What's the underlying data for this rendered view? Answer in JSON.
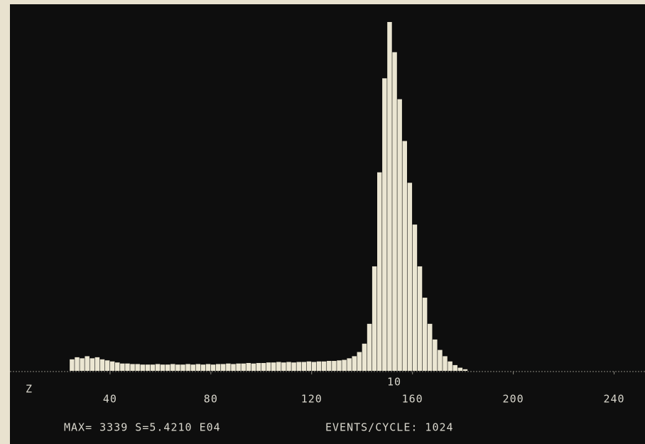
{
  "chart_data": {
    "type": "histogram",
    "annotations": [
      "Z",
      "10"
    ],
    "status": [
      "MAX= 3339 S=5.4210 E04",
      "EVENTS/CYCLE: 1024"
    ],
    "bins": [
      24,
      26,
      28,
      30,
      32,
      34,
      36,
      38,
      40,
      42,
      44,
      46,
      48,
      50,
      52,
      54,
      56,
      58,
      60,
      62,
      64,
      66,
      68,
      70,
      72,
      74,
      76,
      78,
      80,
      82,
      84,
      86,
      88,
      90,
      92,
      94,
      96,
      98,
      100,
      102,
      104,
      106,
      108,
      110,
      112,
      114,
      116,
      118,
      120,
      122,
      124,
      126,
      128,
      130,
      132,
      134,
      136,
      138,
      140,
      142,
      144,
      146,
      148,
      150,
      152,
      154,
      156,
      158,
      160,
      162,
      164,
      166,
      168,
      170,
      172,
      174,
      176,
      178,
      180,
      182
    ],
    "values": [
      110,
      130,
      120,
      140,
      120,
      130,
      110,
      100,
      90,
      80,
      70,
      70,
      65,
      65,
      60,
      60,
      60,
      65,
      60,
      60,
      65,
      60,
      60,
      65,
      60,
      65,
      60,
      65,
      60,
      65,
      65,
      70,
      65,
      70,
      70,
      75,
      70,
      75,
      75,
      80,
      80,
      85,
      80,
      85,
      80,
      85,
      85,
      90,
      85,
      90,
      90,
      95,
      95,
      100,
      105,
      120,
      140,
      180,
      260,
      450,
      1000,
      1900,
      2800,
      3339,
      3050,
      2600,
      2200,
      1800,
      1400,
      1000,
      700,
      450,
      300,
      200,
      140,
      90,
      55,
      30,
      15
    ],
    "color": "#ebe6d2",
    "xlim": [
      0,
      250
    ],
    "xticks": [
      40,
      80,
      120,
      160,
      200,
      240
    ],
    "ylim": [
      0,
      3400
    ]
  }
}
